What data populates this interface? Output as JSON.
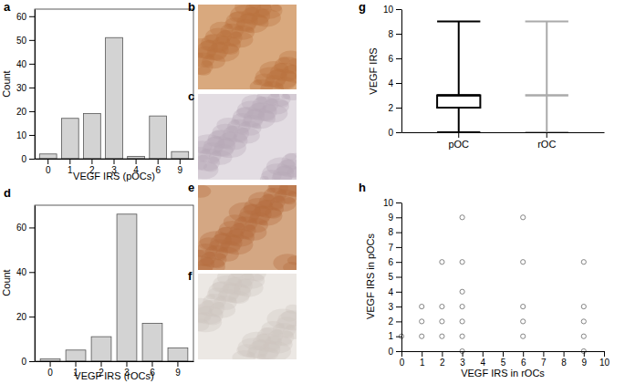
{
  "chart_data": [
    {
      "type": "bar",
      "panel": "a",
      "x_label": "VEGF IRS (pOCs)",
      "y_label": "Count",
      "categories": [
        "0",
        "1",
        "2",
        "3",
        "4",
        "6",
        "9"
      ],
      "values": [
        2,
        17,
        19,
        51,
        1,
        18,
        3
      ],
      "color": "#d3d3d3",
      "ylim": [
        0,
        63
      ],
      "yticks": [
        0,
        10,
        20,
        30,
        40,
        50,
        60
      ]
    },
    {
      "type": "image",
      "panel": "b"
    },
    {
      "type": "image",
      "panel": "c"
    },
    {
      "type": "bar",
      "panel": "d",
      "x_label": "VEGF IRS (rOCs)",
      "y_label": "Count",
      "categories": [
        "0",
        "1",
        "2",
        "3",
        "6",
        "9"
      ],
      "values": [
        1,
        5,
        11,
        66,
        17,
        6
      ],
      "color": "#d3d3d3",
      "ylim": [
        0,
        70
      ],
      "yticks": [
        0,
        20,
        40,
        60
      ]
    },
    {
      "type": "image",
      "panel": "e"
    },
    {
      "type": "image",
      "panel": "f"
    },
    {
      "type": "box",
      "panel": "g",
      "y_label": "VEGF IRS",
      "categories": [
        "pOC",
        "rOC"
      ],
      "min": [
        0,
        0
      ],
      "q1": [
        2,
        3
      ],
      "median": [
        3,
        3
      ],
      "q3": [
        3,
        3
      ],
      "max": [
        9,
        9
      ],
      "colors": [
        "#000000",
        "#aaaaaa"
      ],
      "ylim": [
        0,
        10
      ],
      "yticks": [
        0,
        2,
        4,
        6,
        8,
        10
      ]
    },
    {
      "type": "scatter",
      "panel": "h",
      "x_label": "VEGF IRS in rOCs",
      "y_label": "VEGF IRS in pOCs",
      "x": [
        0,
        1,
        1,
        1,
        2,
        2,
        2,
        2,
        3,
        3,
        3,
        3,
        3,
        3,
        3,
        6,
        6,
        6,
        6,
        6,
        9,
        9,
        9,
        9,
        9
      ],
      "y": [
        1,
        1,
        2,
        3,
        1,
        2,
        3,
        6,
        0,
        1,
        2,
        3,
        4,
        6,
        9,
        1,
        2,
        3,
        6,
        9,
        0,
        1,
        2,
        3,
        6
      ],
      "color": "#777777",
      "marker": "circle-open",
      "xlim": [
        0,
        10
      ],
      "ylim": [
        0,
        10
      ],
      "xticks": [
        0,
        1,
        2,
        3,
        4,
        5,
        6,
        7,
        8,
        9,
        10
      ],
      "yticks": [
        0,
        1,
        2,
        3,
        4,
        5,
        6,
        7,
        8,
        9,
        10
      ]
    }
  ]
}
